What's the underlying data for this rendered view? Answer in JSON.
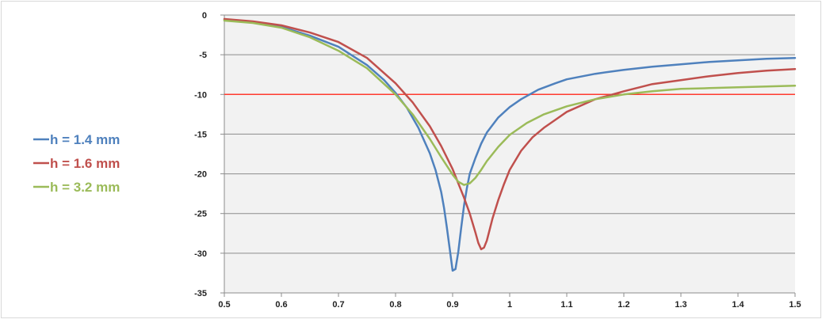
{
  "chart_data": {
    "type": "line",
    "title": "",
    "xlabel": "",
    "ylabel": "",
    "xlim": [
      0.5,
      1.5
    ],
    "ylim": [
      -35,
      0
    ],
    "x_ticks": [
      "0.5",
      "0.6",
      "0.7",
      "0.8",
      "0.9",
      "1",
      "1.1",
      "1.2",
      "1.3",
      "1.4",
      "1.5"
    ],
    "y_ticks": [
      "0",
      "-5",
      "-10",
      "-15",
      "-20",
      "-25",
      "-30",
      "-35"
    ],
    "grid": "horizontal",
    "legend_position": "left",
    "reference_line": {
      "y": -10,
      "color": "#ff3b2f"
    },
    "series": [
      {
        "name": "h = 1.4 mm",
        "color": "#4f81bd",
        "x": [
          0.5,
          0.55,
          0.6,
          0.65,
          0.7,
          0.75,
          0.78,
          0.8,
          0.82,
          0.84,
          0.86,
          0.87,
          0.88,
          0.885,
          0.89,
          0.895,
          0.9,
          0.905,
          0.91,
          0.915,
          0.92,
          0.925,
          0.93,
          0.94,
          0.95,
          0.96,
          0.98,
          1.0,
          1.02,
          1.05,
          1.08,
          1.1,
          1.15,
          1.2,
          1.25,
          1.3,
          1.35,
          1.4,
          1.45,
          1.5
        ],
        "y": [
          -0.6,
          -0.9,
          -1.5,
          -2.6,
          -4.0,
          -6.3,
          -8.2,
          -9.8,
          -11.7,
          -14.2,
          -17.4,
          -19.5,
          -22.3,
          -24.3,
          -26.8,
          -29.5,
          -32.2,
          -32.0,
          -29.8,
          -26.8,
          -24.0,
          -21.8,
          -20.0,
          -18.0,
          -16.2,
          -14.8,
          -12.9,
          -11.6,
          -10.6,
          -9.4,
          -8.6,
          -8.1,
          -7.4,
          -6.9,
          -6.5,
          -6.2,
          -5.9,
          -5.7,
          -5.5,
          -5.4
        ]
      },
      {
        "name": "h = 1.6 mm",
        "color": "#c0504d",
        "x": [
          0.5,
          0.55,
          0.6,
          0.65,
          0.7,
          0.75,
          0.8,
          0.83,
          0.86,
          0.88,
          0.9,
          0.92,
          0.93,
          0.94,
          0.945,
          0.95,
          0.955,
          0.96,
          0.965,
          0.97,
          0.98,
          0.99,
          1.0,
          1.02,
          1.04,
          1.06,
          1.08,
          1.1,
          1.15,
          1.2,
          1.25,
          1.3,
          1.35,
          1.4,
          1.45,
          1.5
        ],
        "y": [
          -0.5,
          -0.8,
          -1.3,
          -2.2,
          -3.4,
          -5.4,
          -8.6,
          -11.0,
          -14.0,
          -16.5,
          -19.4,
          -23.0,
          -25.0,
          -27.4,
          -28.7,
          -29.5,
          -29.3,
          -28.4,
          -27.0,
          -25.6,
          -23.3,
          -21.3,
          -19.5,
          -17.1,
          -15.4,
          -14.2,
          -13.2,
          -12.2,
          -10.6,
          -9.6,
          -8.7,
          -8.2,
          -7.7,
          -7.3,
          -7.0,
          -6.8
        ]
      },
      {
        "name": "h = 3.2 mm",
        "color": "#9bbb59",
        "x": [
          0.5,
          0.55,
          0.6,
          0.65,
          0.7,
          0.75,
          0.8,
          0.83,
          0.86,
          0.88,
          0.9,
          0.91,
          0.92,
          0.93,
          0.94,
          0.95,
          0.96,
          0.98,
          1.0,
          1.03,
          1.06,
          1.1,
          1.15,
          1.2,
          1.25,
          1.3,
          1.35,
          1.4,
          1.45,
          1.5
        ],
        "y": [
          -0.7,
          -1.0,
          -1.6,
          -2.8,
          -4.5,
          -6.7,
          -10.0,
          -12.5,
          -15.6,
          -17.9,
          -20.1,
          -21.0,
          -21.4,
          -21.2,
          -20.5,
          -19.5,
          -18.4,
          -16.6,
          -15.1,
          -13.6,
          -12.5,
          -11.5,
          -10.6,
          -10.0,
          -9.6,
          -9.3,
          -9.2,
          -9.1,
          -9.0,
          -8.9
        ]
      }
    ]
  }
}
